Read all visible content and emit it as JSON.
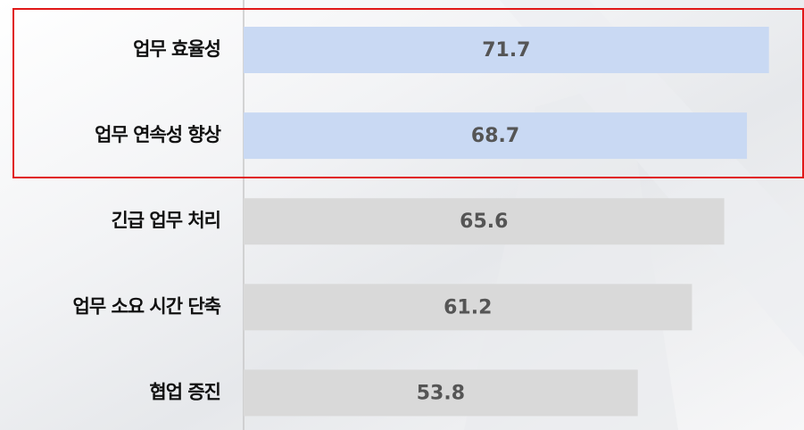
{
  "chart_data": {
    "type": "hbar",
    "categories": [
      "업무 효율성",
      "업무 연속성 향상",
      "긴급 업무 처리",
      "업무 소요 시간 단축",
      "협업 증진"
    ],
    "values": [
      71.7,
      68.7,
      65.6,
      61.2,
      53.8
    ],
    "colors": [
      "#c9d9f3",
      "#c9d9f3",
      "#d9d9d9",
      "#d9d9d9",
      "#d9d9d9"
    ],
    "xlim": [
      0,
      76
    ]
  }
}
